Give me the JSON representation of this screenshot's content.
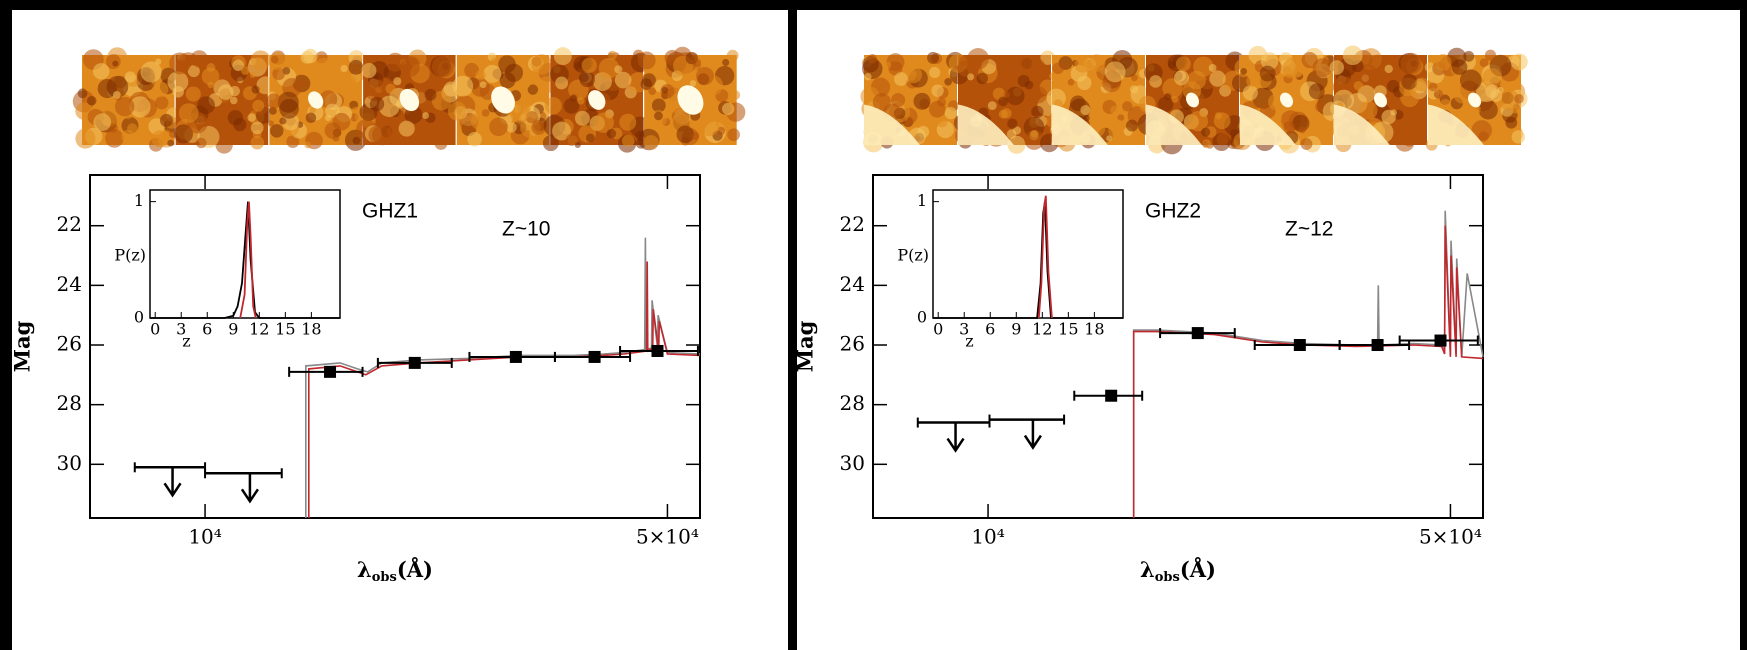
{
  "chart_data": [
    {
      "type": "sed",
      "title": "GHZ1",
      "annotation": "Z~10",
      "y_label": "Mag",
      "x_label": {
        "symbol": "λ",
        "subscript": "obs",
        "unit": "(Å)"
      },
      "xscale": "log",
      "xlim": [
        6700,
        56000
      ],
      "ylim": [
        31.8,
        20.3
      ],
      "xticks": [
        {
          "value": 10000,
          "label": "10⁴"
        },
        {
          "value": 50000,
          "label": "5×10⁴"
        }
      ],
      "yticks": [
        22,
        24,
        26,
        28,
        30
      ],
      "series": [
        {
          "color": "#888888",
          "x": [
            14200,
            14200,
            16000,
            17000,
            17600,
            18500,
            21000,
            25000,
            30000,
            36000,
            40000,
            43000,
            46200,
            46300,
            46400,
            47300,
            47400,
            48300,
            48400,
            50000,
            56000
          ],
          "values": [
            31.8,
            26.7,
            26.6,
            26.8,
            26.9,
            26.6,
            26.5,
            26.45,
            26.35,
            26.35,
            26.3,
            26.25,
            26.15,
            22.4,
            26.15,
            26.1,
            24.5,
            26.1,
            25.0,
            26.25,
            26.3
          ]
        },
        {
          "color": "#c0282d",
          "x": [
            14350,
            14350,
            16000,
            17000,
            17500,
            18500,
            21000,
            25000,
            30000,
            36000,
            40000,
            43000,
            46500,
            46600,
            46700,
            47500,
            47600,
            48500,
            48600,
            50000,
            56000
          ],
          "values": [
            31.8,
            26.8,
            26.7,
            26.9,
            27.0,
            26.7,
            26.6,
            26.5,
            26.4,
            26.4,
            26.35,
            26.3,
            26.2,
            23.2,
            26.2,
            26.1,
            24.8,
            26.2,
            25.2,
            26.3,
            26.35
          ]
        }
      ],
      "points": {
        "color": "#000000",
        "x": [
          15450,
          20750,
          29500,
          38800,
          48300
        ],
        "values": [
          26.9,
          26.6,
          26.4,
          26.4,
          26.2
        ],
        "xlo": [
          13400,
          18250,
          25100,
          33800,
          42400
        ],
        "xhi": [
          17300,
          23600,
          33800,
          43900,
          55600
        ]
      },
      "upper_limits": {
        "color": "#000000",
        "x": [
          8930,
          11690
        ],
        "values": [
          30.1,
          30.3
        ],
        "xlo": [
          7830,
          10000
        ],
        "xhi": [
          10000,
          13060
        ]
      },
      "inset": {
        "type": "line",
        "x_label": "z",
        "y_label": "P(z)",
        "xlim": [
          -0.6,
          21.3
        ],
        "ylim": [
          0,
          1.1
        ],
        "xticks": [
          0,
          3,
          6,
          9,
          12,
          15,
          18
        ],
        "yticks": [
          0,
          1
        ],
        "series": [
          {
            "color": "#000000",
            "x": [
              -0.6,
              8,
              9,
              9.5,
              10,
              10.4,
              10.7,
              11,
              11.5,
              12,
              21.3
            ],
            "values": [
              0,
              0,
              0.02,
              0.1,
              0.3,
              0.7,
              1.0,
              0.5,
              0.05,
              0,
              0
            ]
          },
          {
            "color": "#c0282d",
            "x": [
              9.8,
              10.3,
              10.6,
              10.8,
              11,
              11.3,
              11.6
            ],
            "values": [
              0,
              0.2,
              0.8,
              1.0,
              0.7,
              0.1,
              0
            ]
          }
        ]
      }
    },
    {
      "type": "sed",
      "title": "GHZ2",
      "annotation": "Z~12",
      "y_label": "Mag",
      "x_label": {
        "symbol": "λ",
        "subscript": "obs",
        "unit": "(Å)"
      },
      "xscale": "log",
      "xlim": [
        6700,
        56000
      ],
      "ylim": [
        31.8,
        20.3
      ],
      "xticks": [
        {
          "value": 10000,
          "label": "10⁴"
        },
        {
          "value": 50000,
          "label": "5×10⁴"
        }
      ],
      "yticks": [
        22,
        24,
        26,
        28,
        30
      ],
      "series": [
        {
          "color": "#888888",
          "x": [
            16600,
            16600,
            18000,
            22000,
            26000,
            30000,
            36000,
            38800,
            38900,
            39000,
            44000,
            48500,
            49000,
            49100,
            50000,
            50100,
            51000,
            51100,
            52000,
            53000,
            56000
          ],
          "values": [
            31.8,
            25.5,
            25.5,
            25.6,
            25.85,
            25.95,
            26.0,
            26.0,
            24.0,
            26.0,
            25.95,
            26.0,
            26.2,
            21.5,
            26.3,
            22.5,
            26.3,
            23.1,
            26.4,
            23.6,
            26.4
          ]
        },
        {
          "color": "#c0282d",
          "x": [
            16600,
            16600,
            18000,
            22000,
            26000,
            30000,
            36000,
            44000,
            48500,
            49000,
            49100,
            50000,
            50100,
            51000,
            51100,
            52000,
            56000
          ],
          "values": [
            31.8,
            25.55,
            25.55,
            25.65,
            25.9,
            26.0,
            26.05,
            26.0,
            26.05,
            26.3,
            22.0,
            26.4,
            23.0,
            26.4,
            23.4,
            26.4,
            26.45
          ]
        }
      ],
      "points": {
        "color": "#000000",
        "x": [
          15350,
          20750,
          29600,
          38800,
          48300
        ],
        "values": [
          27.7,
          25.6,
          26.0,
          26.0,
          25.85
        ],
        "xlo": [
          13500,
          18200,
          25300,
          34000,
          41900
        ],
        "xhi": [
          17100,
          23600,
          34000,
          43300,
          55000
        ]
      },
      "upper_limits": {
        "color": "#000000",
        "x": [
          8930,
          11690
        ],
        "values": [
          28.6,
          28.5
        ],
        "xlo": [
          7830,
          10050
        ],
        "xhi": [
          10050,
          13030
        ]
      },
      "inset": {
        "type": "line",
        "x_label": "z",
        "y_label": "P(z)",
        "xlim": [
          -0.6,
          21.3
        ],
        "ylim": [
          0,
          1.1
        ],
        "xticks": [
          0,
          3,
          6,
          9,
          12,
          15,
          18
        ],
        "yticks": [
          0,
          1
        ],
        "series": [
          {
            "color": "#000000",
            "x": [
              -0.6,
              11.4,
              11.8,
              12.1,
              12.3,
              12.6,
              13.0,
              21.3
            ],
            "values": [
              0,
              0,
              0.3,
              0.9,
              1.0,
              0.4,
              0,
              0
            ]
          },
          {
            "color": "#c0282d",
            "x": [
              11.6,
              11.9,
              12.2,
              12.4,
              12.7,
              13.1
            ],
            "values": [
              0,
              0.3,
              0.95,
              1.05,
              0.4,
              0
            ]
          }
        ]
      }
    }
  ]
}
